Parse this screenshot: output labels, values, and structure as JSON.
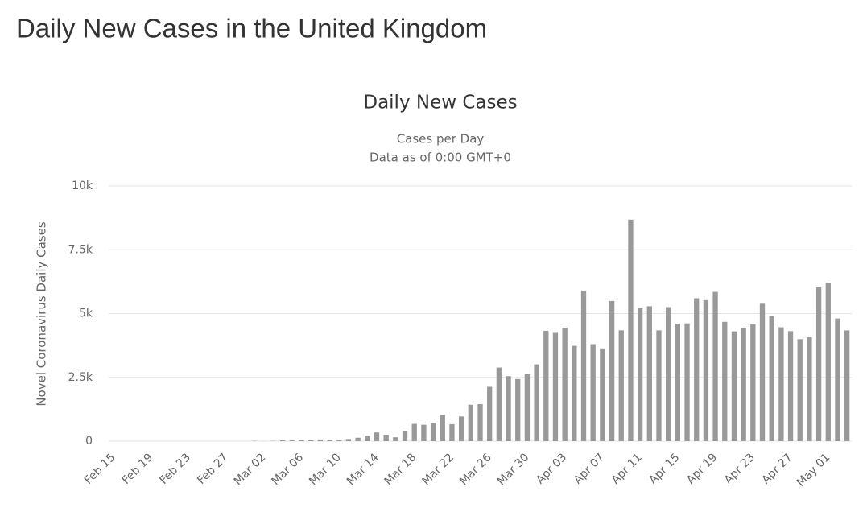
{
  "page_title": "Daily New Cases in the United Kingdom",
  "chart_data": {
    "type": "bar",
    "title": "Daily New Cases",
    "subtitle": [
      "Cases per Day",
      "Data as of 0:00 GMT+0"
    ],
    "y_label": "Novel Coronavirus Daily Cases",
    "categories": [
      "Feb 15",
      null,
      null,
      null,
      "Feb 19",
      null,
      null,
      null,
      "Feb 23",
      null,
      null,
      null,
      "Feb 27",
      null,
      null,
      null,
      "Mar 02",
      null,
      null,
      null,
      "Mar 06",
      null,
      null,
      null,
      "Mar 10",
      null,
      null,
      null,
      "Mar 14",
      null,
      null,
      null,
      "Mar 18",
      null,
      null,
      null,
      "Mar 22",
      null,
      null,
      null,
      "Mar 26",
      null,
      null,
      null,
      "Mar 30",
      null,
      null,
      null,
      "Apr 03",
      null,
      null,
      null,
      "Apr 07",
      null,
      null,
      null,
      "Apr 11",
      null,
      null,
      null,
      "Apr 15",
      null,
      null,
      null,
      "Apr 19",
      null,
      null,
      null,
      "Apr 23",
      null,
      null,
      null,
      "Apr 27",
      null,
      null,
      null,
      "May 01",
      null,
      null
    ],
    "values": [
      0,
      0,
      0,
      0,
      0,
      0,
      0,
      0,
      0,
      0,
      0,
      0,
      0,
      0,
      0,
      12,
      4,
      11,
      34,
      30,
      48,
      43,
      67,
      48,
      52,
      83,
      134,
      208,
      342,
      251,
      152,
      407,
      676,
      643,
      714,
      1035,
      665,
      967,
      1427,
      1452,
      2129,
      2885,
      2546,
      2433,
      2619,
      3009,
      4324,
      4244,
      4450,
      3735,
      5903,
      3802,
      3634,
      5491,
      4344,
      8681,
      5233,
      5288,
      4342,
      5252,
      4605,
      4617,
      5599,
      5526,
      5850,
      4676,
      4301,
      4451,
      4583,
      5386,
      4913,
      4463,
      4310,
      3996,
      4076,
      6032,
      6201,
      4806,
      4339
    ],
    "color": "#999999",
    "ylim": [
      0,
      10000
    ],
    "yticks": [
      0,
      {
        "value": 2500,
        "label": "2.5k"
      },
      {
        "value": 5000,
        "label": "5k"
      },
      {
        "value": 7500,
        "label": "7.5k"
      },
      {
        "value": 10000,
        "label": "10k"
      }
    ],
    "grid": true
  }
}
